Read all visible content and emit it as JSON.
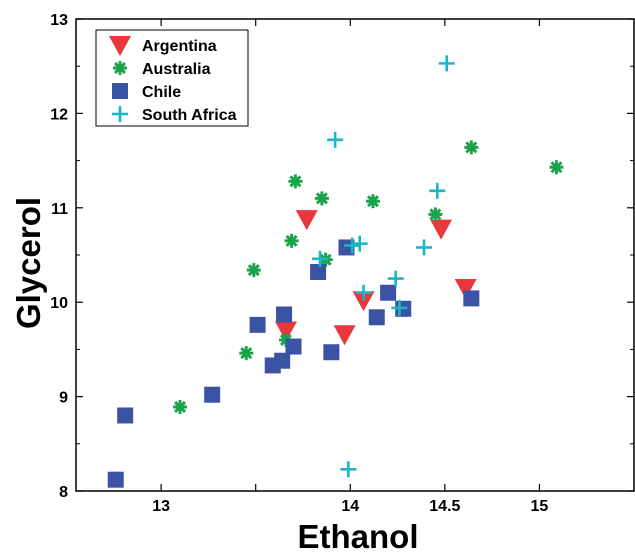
{
  "chart_data": {
    "type": "scatter",
    "title": "",
    "xlabel": "Ethanol",
    "ylabel": "Glycerol",
    "xlim": [
      12.55,
      15.5
    ],
    "ylim": [
      8,
      13
    ],
    "xticks": [
      13,
      13.5,
      14,
      14.5,
      15
    ],
    "xtick_labels": [
      "13",
      "",
      "14",
      "14.5",
      "15"
    ],
    "yticks": [
      8,
      9,
      10,
      11,
      12,
      13
    ],
    "ytick_labels": [
      "8",
      "9",
      "10",
      "11",
      "12",
      "13"
    ],
    "grid": false,
    "legend_position": "top-left",
    "series": [
      {
        "name": "Argentina",
        "marker": "triangle-down",
        "color": "#e8383d",
        "points": [
          [
            13.66,
            9.7
          ],
          [
            13.77,
            10.88
          ],
          [
            13.97,
            9.66
          ],
          [
            14.07,
            10.02
          ],
          [
            14.48,
            10.78
          ],
          [
            14.61,
            10.15
          ]
        ]
      },
      {
        "name": "Australia",
        "marker": "asterisk",
        "color": "#1aa34a",
        "points": [
          [
            13.1,
            8.89
          ],
          [
            13.45,
            9.46
          ],
          [
            13.49,
            10.34
          ],
          [
            13.66,
            9.6
          ],
          [
            13.69,
            10.65
          ],
          [
            13.71,
            11.28
          ],
          [
            13.85,
            11.1
          ],
          [
            13.87,
            10.45
          ],
          [
            14.12,
            11.07
          ],
          [
            14.45,
            10.93
          ],
          [
            14.64,
            11.64
          ],
          [
            15.09,
            11.43
          ]
        ]
      },
      {
        "name": "Chile",
        "marker": "square",
        "color": "#3a53a4",
        "points": [
          [
            12.76,
            8.12
          ],
          [
            12.81,
            8.8
          ],
          [
            13.27,
            9.02
          ],
          [
            13.51,
            9.76
          ],
          [
            13.59,
            9.33
          ],
          [
            13.64,
            9.38
          ],
          [
            13.65,
            9.87
          ],
          [
            13.7,
            9.53
          ],
          [
            13.83,
            10.32
          ],
          [
            13.9,
            9.47
          ],
          [
            13.98,
            10.58
          ],
          [
            14.14,
            9.84
          ],
          [
            14.2,
            10.1
          ],
          [
            14.28,
            9.93
          ],
          [
            14.64,
            10.04
          ]
        ]
      },
      {
        "name": "South Africa",
        "marker": "plus",
        "color": "#1ab6c8",
        "points": [
          [
            13.84,
            10.46
          ],
          [
            13.92,
            11.72
          ],
          [
            13.99,
            8.23
          ],
          [
            14.01,
            10.6
          ],
          [
            14.05,
            10.62
          ],
          [
            14.07,
            10.1
          ],
          [
            14.24,
            10.25
          ],
          [
            14.26,
            9.94
          ],
          [
            14.39,
            10.58
          ],
          [
            14.46,
            11.18
          ],
          [
            14.51,
            12.53
          ]
        ]
      }
    ]
  }
}
